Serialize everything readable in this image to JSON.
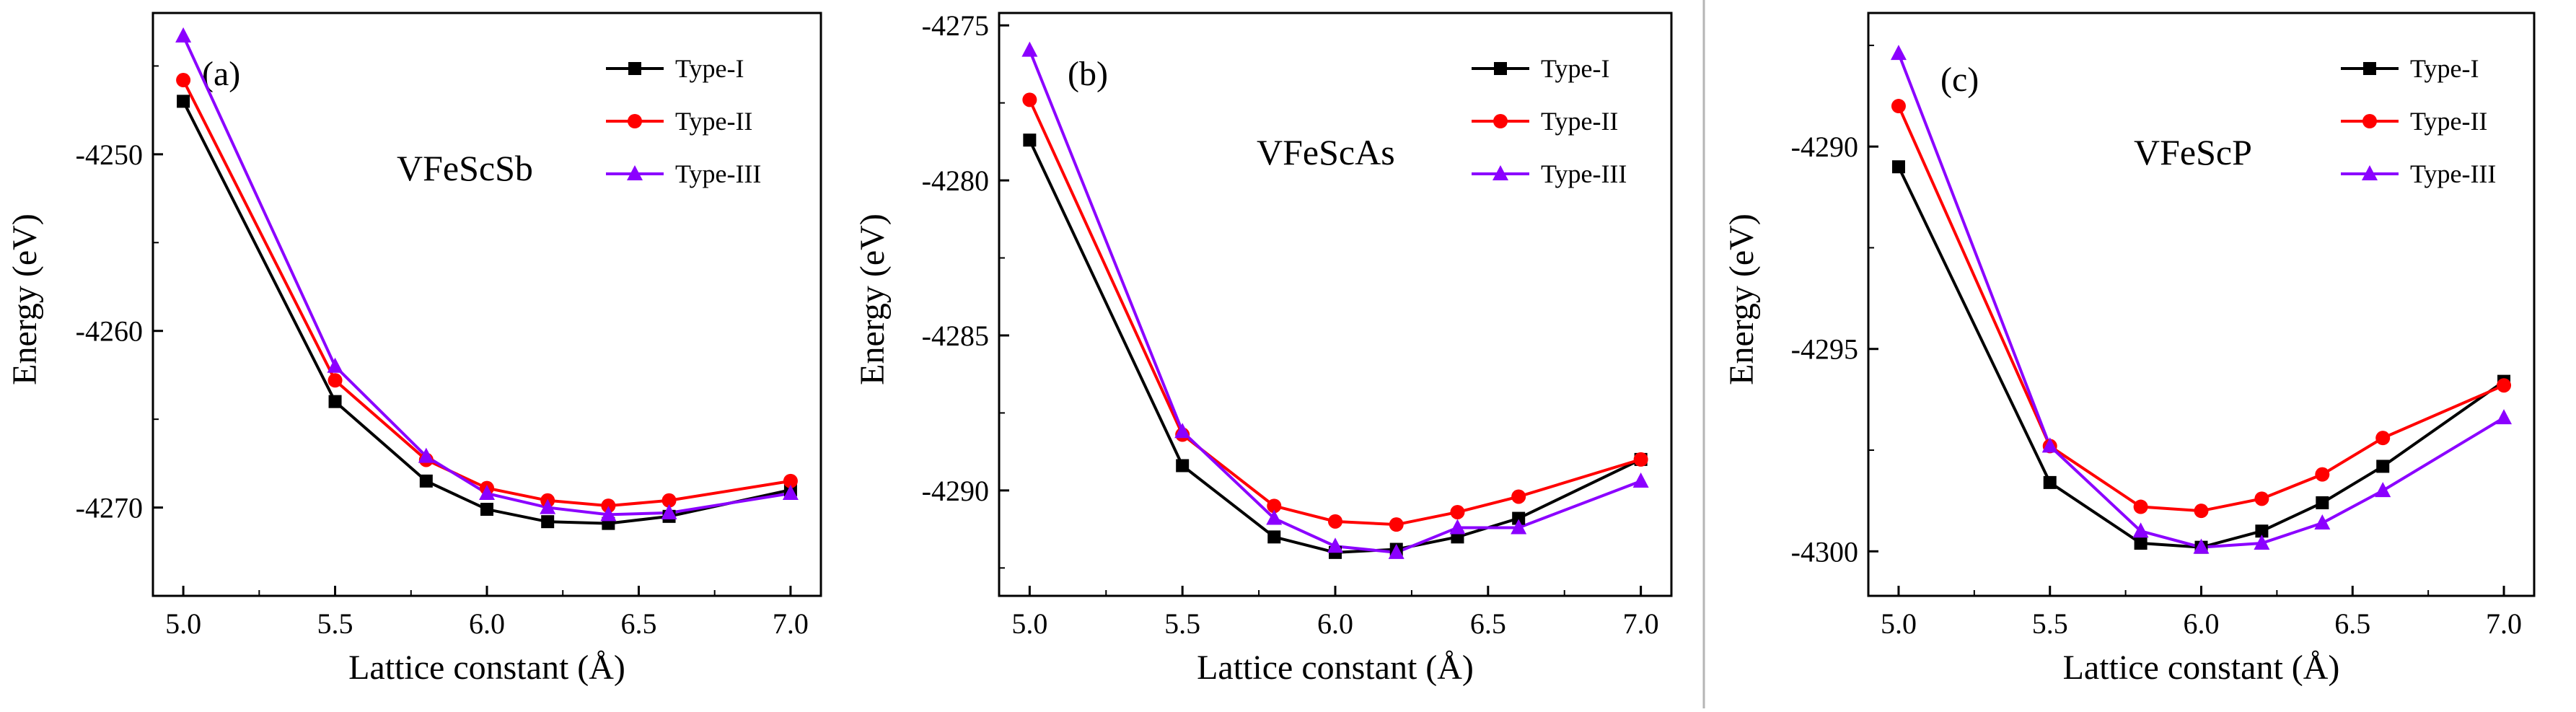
{
  "series_styles": [
    {
      "name": "Type-I",
      "color": "#000000",
      "marker": "square"
    },
    {
      "name": "Type-II",
      "color": "#ff0000",
      "marker": "circle"
    },
    {
      "name": "Type-III",
      "color": "#8b00ff",
      "marker": "triangle"
    }
  ],
  "chart_data": [
    {
      "type": "line",
      "panel_label": "(a)",
      "annotation": "VFeScSb",
      "xlabel": "Lattice constant (Å)",
      "ylabel": "Energy (eV)",
      "xlim": [
        4.9,
        7.1
      ],
      "ylim": [
        -4275,
        -4242
      ],
      "xticks": [
        5.0,
        5.5,
        6.0,
        6.5,
        7.0
      ],
      "xtick_labels": [
        "5.0",
        "5.5",
        "6.0",
        "6.5",
        "7.0"
      ],
      "yticks": [
        -4250,
        -4260,
        -4270
      ],
      "ytick_labels": [
        "-4250",
        "-4260",
        "-4270"
      ],
      "legend": [
        "Type-I",
        "Type-II",
        "Type-III"
      ],
      "legend_position": "top-right",
      "x": [
        5.0,
        5.5,
        5.8,
        6.0,
        6.2,
        6.4,
        6.6,
        7.0
      ],
      "series": [
        {
          "name": "Type-I",
          "values": [
            -4247.0,
            -4264.0,
            -4268.5,
            -4270.1,
            -4270.8,
            -4270.9,
            -4270.5,
            -4269.0
          ]
        },
        {
          "name": "Type-II",
          "values": [
            -4245.8,
            -4262.8,
            -4267.3,
            -4268.9,
            -4269.6,
            -4269.9,
            -4269.6,
            -4268.5
          ]
        },
        {
          "name": "Type-III",
          "values": [
            -4243.3,
            -4262.0,
            -4267.1,
            -4269.2,
            -4270.0,
            -4270.4,
            -4270.3,
            -4269.2
          ]
        }
      ]
    },
    {
      "type": "line",
      "panel_label": "(b)",
      "annotation": "VFeScAs",
      "xlabel": "Lattice constant (Å)",
      "ylabel": "Energy (eV)",
      "xlim": [
        4.9,
        7.1
      ],
      "ylim": [
        -4293.4,
        -4274.6
      ],
      "xticks": [
        5.0,
        5.5,
        6.0,
        6.5,
        7.0
      ],
      "xtick_labels": [
        "5.0",
        "5.5",
        "6.0",
        "6.5",
        "7.0"
      ],
      "yticks": [
        -4275,
        -4280,
        -4285,
        -4290
      ],
      "ytick_labels": [
        "-4275",
        "-4280",
        "-4285",
        "-4290"
      ],
      "legend": [
        "Type-I",
        "Type-II",
        "Type-III"
      ],
      "legend_position": "top-right",
      "x": [
        5.0,
        5.5,
        5.8,
        6.0,
        6.2,
        6.4,
        6.6,
        7.0
      ],
      "series": [
        {
          "name": "Type-I",
          "values": [
            -4278.7,
            -4289.2,
            -4291.5,
            -4292.0,
            -4291.9,
            -4291.5,
            -4290.9,
            -4289.0
          ]
        },
        {
          "name": "Type-II",
          "values": [
            -4277.4,
            -4288.2,
            -4290.5,
            -4291.0,
            -4291.1,
            -4290.7,
            -4290.2,
            -4289.0
          ]
        },
        {
          "name": "Type-III",
          "values": [
            -4275.8,
            -4288.1,
            -4290.9,
            -4291.8,
            -4292.0,
            -4291.2,
            -4291.2,
            -4289.7
          ]
        }
      ]
    },
    {
      "type": "line",
      "panel_label": "(c)",
      "annotation": "VFeScP",
      "xlabel": "Lattice constant (Å)",
      "ylabel": "Energy (eV)",
      "xlim": [
        4.9,
        7.1
      ],
      "ylim": [
        -4301.1,
        -4286.7
      ],
      "xticks": [
        5.0,
        5.5,
        6.0,
        6.5,
        7.0
      ],
      "xtick_labels": [
        "5.0",
        "5.5",
        "6.0",
        "6.5",
        "7.0"
      ],
      "yticks": [
        -4290,
        -4295,
        -4300
      ],
      "ytick_labels": [
        "-4290",
        "-4295",
        "-4300"
      ],
      "legend": [
        "Type-I",
        "Type-II",
        "Type-III"
      ],
      "legend_position": "top-right",
      "x": [
        5.0,
        5.5,
        5.8,
        6.0,
        6.2,
        6.4,
        6.6,
        7.0
      ],
      "series": [
        {
          "name": "Type-I",
          "values": [
            -4290.5,
            -4298.3,
            -4299.8,
            -4299.9,
            -4299.5,
            -4298.8,
            -4297.9,
            -4295.8
          ]
        },
        {
          "name": "Type-II",
          "values": [
            -4289.0,
            -4297.4,
            -4298.9,
            -4299.0,
            -4298.7,
            -4298.1,
            -4297.2,
            -4295.9
          ]
        },
        {
          "name": "Type-III",
          "values": [
            -4287.7,
            -4297.4,
            -4299.5,
            -4299.9,
            -4299.8,
            -4299.3,
            -4298.5,
            -4296.7
          ]
        }
      ]
    }
  ]
}
